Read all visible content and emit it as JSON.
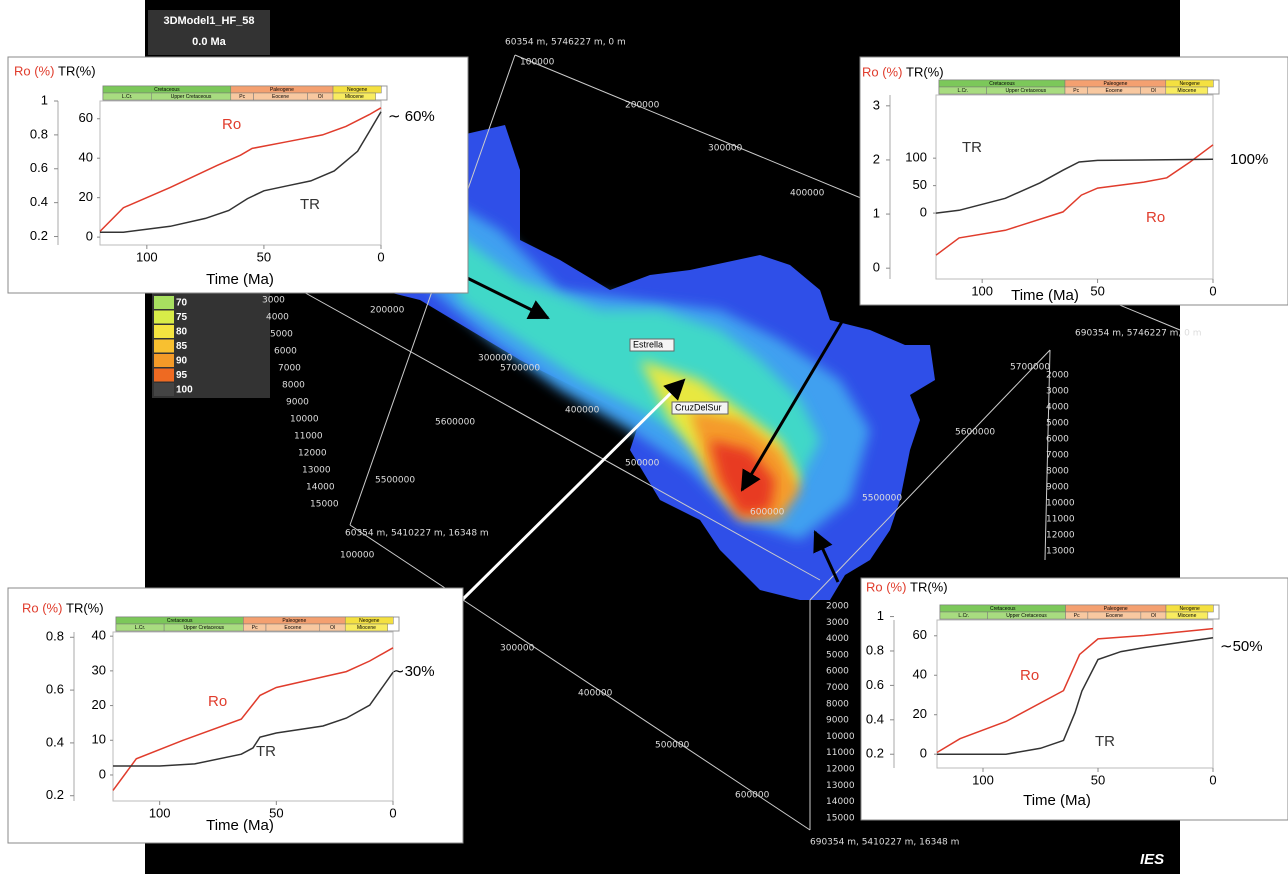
{
  "scene": {
    "title": "3DModel1_HF_58",
    "time": "0.0 Ma",
    "legend": [
      "70",
      "75",
      "80",
      "85",
      "90",
      "95",
      "100"
    ],
    "legend_colors": [
      "#a8e060",
      "#d8ec48",
      "#f4e440",
      "#f8c030",
      "#f49a28",
      "#ee6a22",
      "#444444"
    ],
    "wells": [
      "Estrella",
      "CruzDelSur"
    ],
    "coords": [
      "60354 m, 5746227 m, 0 m",
      "690354 m, 5746227 m, 0 m",
      "60354 m, 5410227 m, 16348 m",
      "690354 m, 5410227 m, 16348 m"
    ],
    "axis_labels": [
      "100000",
      "200000",
      "300000",
      "400000",
      "200000",
      "300000",
      "5700000",
      "400000",
      "5600000",
      "500000",
      "5500000",
      "600000",
      "5700000",
      "5600000",
      "5500000",
      "100000",
      "300000",
      "400000",
      "500000",
      "600000"
    ],
    "depth_left": [
      "3000",
      "4000",
      "5000",
      "6000",
      "7000",
      "8000",
      "9000",
      "10000",
      "11000",
      "12000",
      "13000",
      "14000",
      "15000"
    ],
    "depth_right_upper": [
      "2000",
      "3000",
      "4000",
      "5000",
      "6000",
      "7000",
      "8000",
      "9000",
      "10000",
      "11000",
      "12000",
      "13000"
    ],
    "depth_right_lower": [
      "2000",
      "3000",
      "4000",
      "5000",
      "6000",
      "7000",
      "8000",
      "9000",
      "10000",
      "11000",
      "12000",
      "13000",
      "14000",
      "15000"
    ],
    "logo": "IES"
  },
  "stratigraphy": {
    "periods": [
      "Cretaceous",
      "Paleogene",
      "Neogene"
    ],
    "epochs": [
      "L.Cr.",
      "Upper Cretaceous",
      "Pc",
      "Eocene",
      "Ol",
      "Miocene"
    ]
  },
  "chart_data": [
    {
      "type": "line",
      "x_label": "Time (Ma)",
      "y_label": "Ro (%)",
      "y2_label": "TR(%)",
      "xlim": [
        120,
        0
      ],
      "xticks": [
        100,
        50,
        0
      ],
      "ylim": [
        0.15,
        1.0
      ],
      "yticks": [
        0.2,
        0.4,
        0.6,
        0.8,
        1
      ],
      "y2lim": [
        -4,
        69
      ],
      "y2ticks": [
        0,
        20,
        40,
        60
      ],
      "series": [
        {
          "name": "Ro",
          "color": "#e03c2c",
          "x": [
            120,
            110,
            90,
            70,
            60,
            55,
            40,
            25,
            15,
            5,
            0
          ],
          "values": [
            0.23,
            0.37,
            0.49,
            0.62,
            0.68,
            0.72,
            0.76,
            0.8,
            0.85,
            0.92,
            0.96
          ]
        },
        {
          "name": "TR",
          "color": "#333333",
          "axis": "y2",
          "x": [
            120,
            110,
            90,
            75,
            65,
            57,
            50,
            40,
            30,
            20,
            10,
            5,
            0
          ],
          "values": [
            2.5,
            2.5,
            5.5,
            9.5,
            13.5,
            19.5,
            23.5,
            26,
            28.5,
            33.5,
            43.5,
            53.5,
            63.5
          ]
        }
      ],
      "annotations": [
        "∼ 60%"
      ]
    },
    {
      "type": "line",
      "x_label": "Time (Ma)",
      "y_label": "Ro (%)",
      "y2_label": "TR(%)",
      "xlim": [
        120,
        0
      ],
      "xticks": [
        100,
        50,
        0
      ],
      "ylim": [
        -0.2,
        3.2
      ],
      "yticks": [
        0,
        1,
        2,
        3
      ],
      "y2lim": [
        -120,
        215
      ],
      "y2ticks": [
        0,
        50,
        100
      ],
      "series": [
        {
          "name": "Ro",
          "color": "#e03c2c",
          "x": [
            120,
            110,
            90,
            65,
            57,
            50,
            30,
            20,
            10,
            0
          ],
          "values": [
            0.24,
            0.56,
            0.7,
            1.04,
            1.35,
            1.48,
            1.59,
            1.67,
            1.96,
            2.28
          ]
        },
        {
          "name": "TR",
          "color": "#333333",
          "axis": "y2",
          "x": [
            120,
            110,
            90,
            75,
            65,
            58,
            50,
            0
          ],
          "values": [
            0,
            5,
            27,
            55,
            78,
            93,
            96,
            98
          ]
        }
      ],
      "annotations": [
        "100%"
      ]
    },
    {
      "type": "line",
      "x_label": "Time (Ma)",
      "y_label": "Ro (%)",
      "y2_label": "TR(%)",
      "xlim": [
        120,
        0
      ],
      "xticks": [
        100,
        50,
        0
      ],
      "ylim": [
        0.18,
        0.82
      ],
      "yticks": [
        0.2,
        0.4,
        0.6,
        0.8
      ],
      "y2lim": [
        -7.5,
        41.2
      ],
      "y2ticks": [
        0,
        10,
        20,
        30,
        40
      ],
      "series": [
        {
          "name": "Ro",
          "color": "#e03c2c",
          "x": [
            120,
            110,
            90,
            65,
            57,
            50,
            30,
            20,
            10,
            0
          ],
          "values": [
            0.22,
            0.34,
            0.41,
            0.49,
            0.58,
            0.61,
            0.65,
            0.67,
            0.71,
            0.76
          ]
        },
        {
          "name": "TR",
          "color": "#333333",
          "axis": "y2",
          "x": [
            120,
            100,
            85,
            65,
            60,
            57,
            50,
            30,
            20,
            10,
            0
          ],
          "values": [
            2.6,
            2.6,
            3.2,
            6,
            7.8,
            10.9,
            12.1,
            14.1,
            16.4,
            20.1,
            29.6
          ]
        }
      ],
      "annotations": [
        "∼30%"
      ]
    },
    {
      "type": "line",
      "x_label": "Time (Ma)",
      "y_label": "Ro (%)",
      "y2_label": "TR(%)",
      "xlim": [
        120,
        0
      ],
      "xticks": [
        100,
        50,
        0
      ],
      "ylim": [
        0.12,
        0.98
      ],
      "yticks": [
        0.2,
        0.4,
        0.6,
        0.8,
        1
      ],
      "y2lim": [
        -7,
        68
      ],
      "y2ticks": [
        0,
        20,
        40,
        60
      ],
      "series": [
        {
          "name": "Ro",
          "color": "#e03c2c",
          "x": [
            120,
            110,
            90,
            65,
            58,
            50,
            30,
            0
          ],
          "values": [
            0.21,
            0.29,
            0.39,
            0.57,
            0.78,
            0.87,
            0.89,
            0.93
          ]
        },
        {
          "name": "TR",
          "color": "#333333",
          "axis": "y2",
          "x": [
            120,
            90,
            75,
            65,
            60,
            57,
            50,
            40,
            30,
            0
          ],
          "values": [
            0,
            0,
            3,
            7,
            21,
            32,
            48,
            52,
            54,
            59
          ]
        }
      ],
      "annotations": [
        "∼50%"
      ]
    }
  ]
}
